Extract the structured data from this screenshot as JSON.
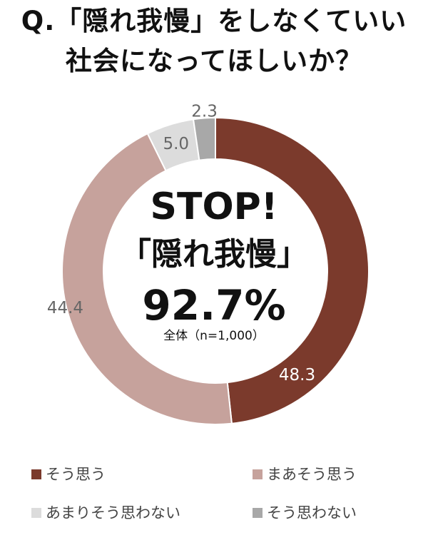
{
  "title_line1": "Q.「隠れ我慢」をしなくていい",
  "title_line2": "社会になってほしいか？",
  "center": {
    "headline": "STOP!",
    "name": "「隠れ我慢」",
    "percent": "92.7%",
    "note": "全体（n=1,000）"
  },
  "chart_data": {
    "type": "pie",
    "donut": true,
    "start": "12 o'clock, clockwise",
    "categories": [
      "そう思う",
      "まあそう思う",
      "あまりそう思わない",
      "そう思わない"
    ],
    "values": [
      48.3,
      44.4,
      5.0,
      2.3
    ],
    "value_labels": [
      "48.3",
      "44.4",
      "5.0",
      "2.3"
    ],
    "colors": [
      "#7b3a2c",
      "#c6a29c",
      "#dcdcdc",
      "#a8a8a8"
    ],
    "label_colors": [
      "#ffffff",
      "#666666",
      "#666666",
      "#666666"
    ],
    "legend_position": "bottom"
  },
  "legend": [
    {
      "label": "そう思う",
      "color": "#7b3a2c"
    },
    {
      "label": "まあそう思う",
      "color": "#c6a29c"
    },
    {
      "label": "あまりそう思わない",
      "color": "#dcdcdc"
    },
    {
      "label": "そう思わない",
      "color": "#a8a8a8"
    }
  ]
}
